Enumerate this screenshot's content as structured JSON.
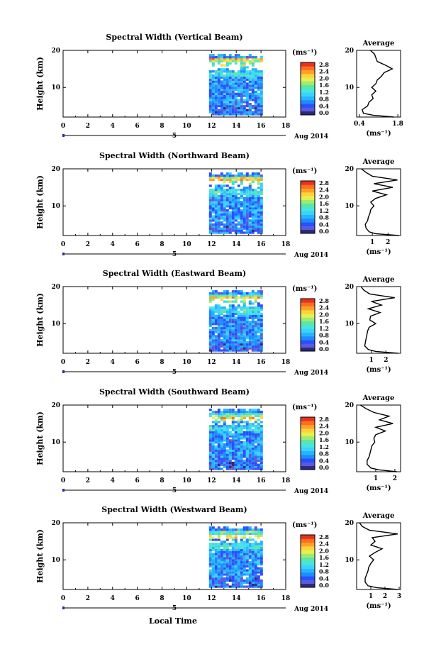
{
  "footer": {
    "xlabel": "Local Time"
  },
  "colorbar": {
    "unit": "(ms⁻¹)",
    "ticks": [
      "0.0",
      "0.4",
      "0.8",
      "1.2",
      "1.6",
      "2.0",
      "2.4",
      "2.8"
    ],
    "colors": [
      "#2a2a78",
      "#5a5adc",
      "#2850ff",
      "#1e8cff",
      "#28b4ff",
      "#3cd2ff",
      "#46e6dc",
      "#5ae6aa",
      "#a0eb6e",
      "#e6f050",
      "#ffd23c",
      "#ffa028",
      "#ff6e1e",
      "#e6321e"
    ]
  },
  "chart_data": [
    {
      "type": "heatmap",
      "title": "Spectral Width (Vertical Beam)",
      "ylabel": "Height (km)",
      "xlim": [
        0,
        18
      ],
      "ylim": [
        2,
        20
      ],
      "xticks": [
        "0",
        "2",
        "4",
        "6",
        "8",
        "10",
        "12",
        "14",
        "16",
        "18"
      ],
      "yticks": [
        "10",
        "20"
      ],
      "date_marker": "5",
      "date_label": "Aug 2014",
      "data_time_range": [
        11.8,
        16
      ],
      "average": {
        "title": "Average",
        "xlabel": "(ms⁻¹)",
        "xticks": [
          "0.4",
          "1.8"
        ],
        "xlim": [
          0.3,
          1.9
        ],
        "profile": [
          [
            1.65,
            2
          ],
          [
            0.9,
            2.5
          ],
          [
            0.55,
            3
          ],
          [
            0.5,
            4
          ],
          [
            0.7,
            5
          ],
          [
            0.75,
            6
          ],
          [
            0.9,
            7
          ],
          [
            0.85,
            8
          ],
          [
            1.0,
            9
          ],
          [
            0.85,
            10
          ],
          [
            1.0,
            11
          ],
          [
            1.05,
            12
          ],
          [
            1.2,
            13
          ],
          [
            1.3,
            14
          ],
          [
            1.6,
            15
          ],
          [
            1.35,
            16
          ],
          [
            1.05,
            17
          ],
          [
            1.0,
            18
          ],
          [
            0.95,
            19
          ],
          [
            0.8,
            20
          ]
        ]
      }
    },
    {
      "type": "heatmap",
      "title": "Spectral Width (Northward Beam)",
      "ylabel": "Height (km)",
      "xlim": [
        0,
        18
      ],
      "ylim": [
        2,
        20
      ],
      "xticks": [
        "0",
        "2",
        "4",
        "6",
        "8",
        "10",
        "12",
        "14",
        "16",
        "18"
      ],
      "yticks": [
        "10",
        "20"
      ],
      "date_marker": "5",
      "date_label": "Aug 2014",
      "data_time_range": [
        11.8,
        16
      ],
      "average": {
        "title": "Average",
        "xlabel": "(ms⁻¹)",
        "xticks": [
          "1",
          "2"
        ],
        "xlim": [
          0.0,
          2.8
        ],
        "profile": [
          [
            2.7,
            2
          ],
          [
            1.2,
            2.5
          ],
          [
            0.8,
            3
          ],
          [
            0.6,
            4
          ],
          [
            0.55,
            5
          ],
          [
            0.7,
            6
          ],
          [
            0.75,
            7
          ],
          [
            0.85,
            8
          ],
          [
            0.9,
            9
          ],
          [
            1.1,
            10
          ],
          [
            0.9,
            11
          ],
          [
            1.2,
            12
          ],
          [
            1.9,
            13
          ],
          [
            1.0,
            14
          ],
          [
            2.3,
            15
          ],
          [
            1.1,
            16
          ],
          [
            2.6,
            17
          ],
          [
            1.0,
            18
          ],
          [
            0.6,
            19
          ],
          [
            0.3,
            20
          ]
        ]
      }
    },
    {
      "type": "heatmap",
      "title": "Spectral Width (Eastward Beam)",
      "ylabel": "Height (km)",
      "xlim": [
        0,
        18
      ],
      "ylim": [
        2,
        20
      ],
      "xticks": [
        "0",
        "2",
        "4",
        "6",
        "8",
        "10",
        "12",
        "14",
        "16",
        "18"
      ],
      "yticks": [
        "10",
        "20"
      ],
      "date_marker": "5",
      "date_label": "Aug 2014",
      "data_time_range": [
        11.8,
        16
      ],
      "average": {
        "title": "Average",
        "xlabel": "(ms⁻¹)",
        "xticks": [
          "1",
          "2"
        ],
        "xlim": [
          0.0,
          3.0
        ],
        "profile": [
          [
            2.8,
            2
          ],
          [
            1.3,
            2.5
          ],
          [
            0.8,
            3
          ],
          [
            0.55,
            4
          ],
          [
            0.6,
            5
          ],
          [
            0.65,
            6
          ],
          [
            0.7,
            7
          ],
          [
            0.75,
            8
          ],
          [
            0.85,
            9
          ],
          [
            1.3,
            10
          ],
          [
            0.9,
            11
          ],
          [
            0.95,
            12
          ],
          [
            1.6,
            13
          ],
          [
            0.8,
            14
          ],
          [
            1.7,
            15
          ],
          [
            1.0,
            16
          ],
          [
            2.6,
            17
          ],
          [
            0.9,
            18
          ],
          [
            0.5,
            19
          ],
          [
            0.3,
            20
          ]
        ]
      }
    },
    {
      "type": "heatmap",
      "title": "Spectral Width (Southward Beam)",
      "ylabel": "Height (km)",
      "xlim": [
        0,
        18
      ],
      "ylim": [
        2,
        20
      ],
      "xticks": [
        "0",
        "2",
        "4",
        "6",
        "8",
        "10",
        "12",
        "14",
        "16",
        "18"
      ],
      "yticks": [
        "10",
        "20"
      ],
      "date_marker": "5",
      "date_label": "Aug 2014",
      "data_time_range": [
        11.8,
        16
      ],
      "average": {
        "title": "Average",
        "xlabel": "(ms⁻¹)",
        "xticks": [
          "1",
          "2"
        ],
        "xlim": [
          0.0,
          2.3
        ],
        "profile": [
          [
            2.1,
            2
          ],
          [
            1.2,
            2.5
          ],
          [
            0.75,
            3
          ],
          [
            0.55,
            4
          ],
          [
            0.55,
            5
          ],
          [
            0.65,
            6
          ],
          [
            0.7,
            7
          ],
          [
            0.75,
            8
          ],
          [
            0.8,
            9
          ],
          [
            0.95,
            10
          ],
          [
            0.9,
            11
          ],
          [
            1.0,
            12
          ],
          [
            1.5,
            13
          ],
          [
            1.0,
            14
          ],
          [
            1.9,
            15
          ],
          [
            1.2,
            16
          ],
          [
            1.7,
            17
          ],
          [
            0.9,
            18
          ],
          [
            0.5,
            19
          ],
          [
            0.2,
            20
          ]
        ]
      }
    },
    {
      "type": "heatmap",
      "title": "Spectral Width (Westward Beam)",
      "ylabel": "Height (km)",
      "xlim": [
        0,
        18
      ],
      "ylim": [
        2,
        20
      ],
      "xticks": [
        "0",
        "2",
        "4",
        "6",
        "8",
        "10",
        "12",
        "14",
        "16",
        "18"
      ],
      "yticks": [
        "10",
        "20"
      ],
      "date_marker": "5",
      "date_label": "Aug 2014",
      "data_time_range": [
        11.8,
        16
      ],
      "average": {
        "title": "Average",
        "xlabel": "(ms⁻¹)",
        "xticks": [
          "1",
          "2",
          "3"
        ],
        "xlim": [
          0.0,
          3.1
        ],
        "profile": [
          [
            2.9,
            2
          ],
          [
            1.4,
            2.5
          ],
          [
            0.8,
            3
          ],
          [
            0.6,
            4
          ],
          [
            0.6,
            5
          ],
          [
            0.7,
            6
          ],
          [
            0.8,
            7
          ],
          [
            0.85,
            8
          ],
          [
            1.0,
            9
          ],
          [
            1.2,
            10
          ],
          [
            0.9,
            11
          ],
          [
            1.3,
            12
          ],
          [
            1.8,
            13
          ],
          [
            1.0,
            14
          ],
          [
            1.3,
            15
          ],
          [
            1.1,
            16
          ],
          [
            2.9,
            17
          ],
          [
            0.9,
            18
          ],
          [
            0.4,
            19
          ],
          [
            0.2,
            20
          ]
        ]
      }
    }
  ]
}
